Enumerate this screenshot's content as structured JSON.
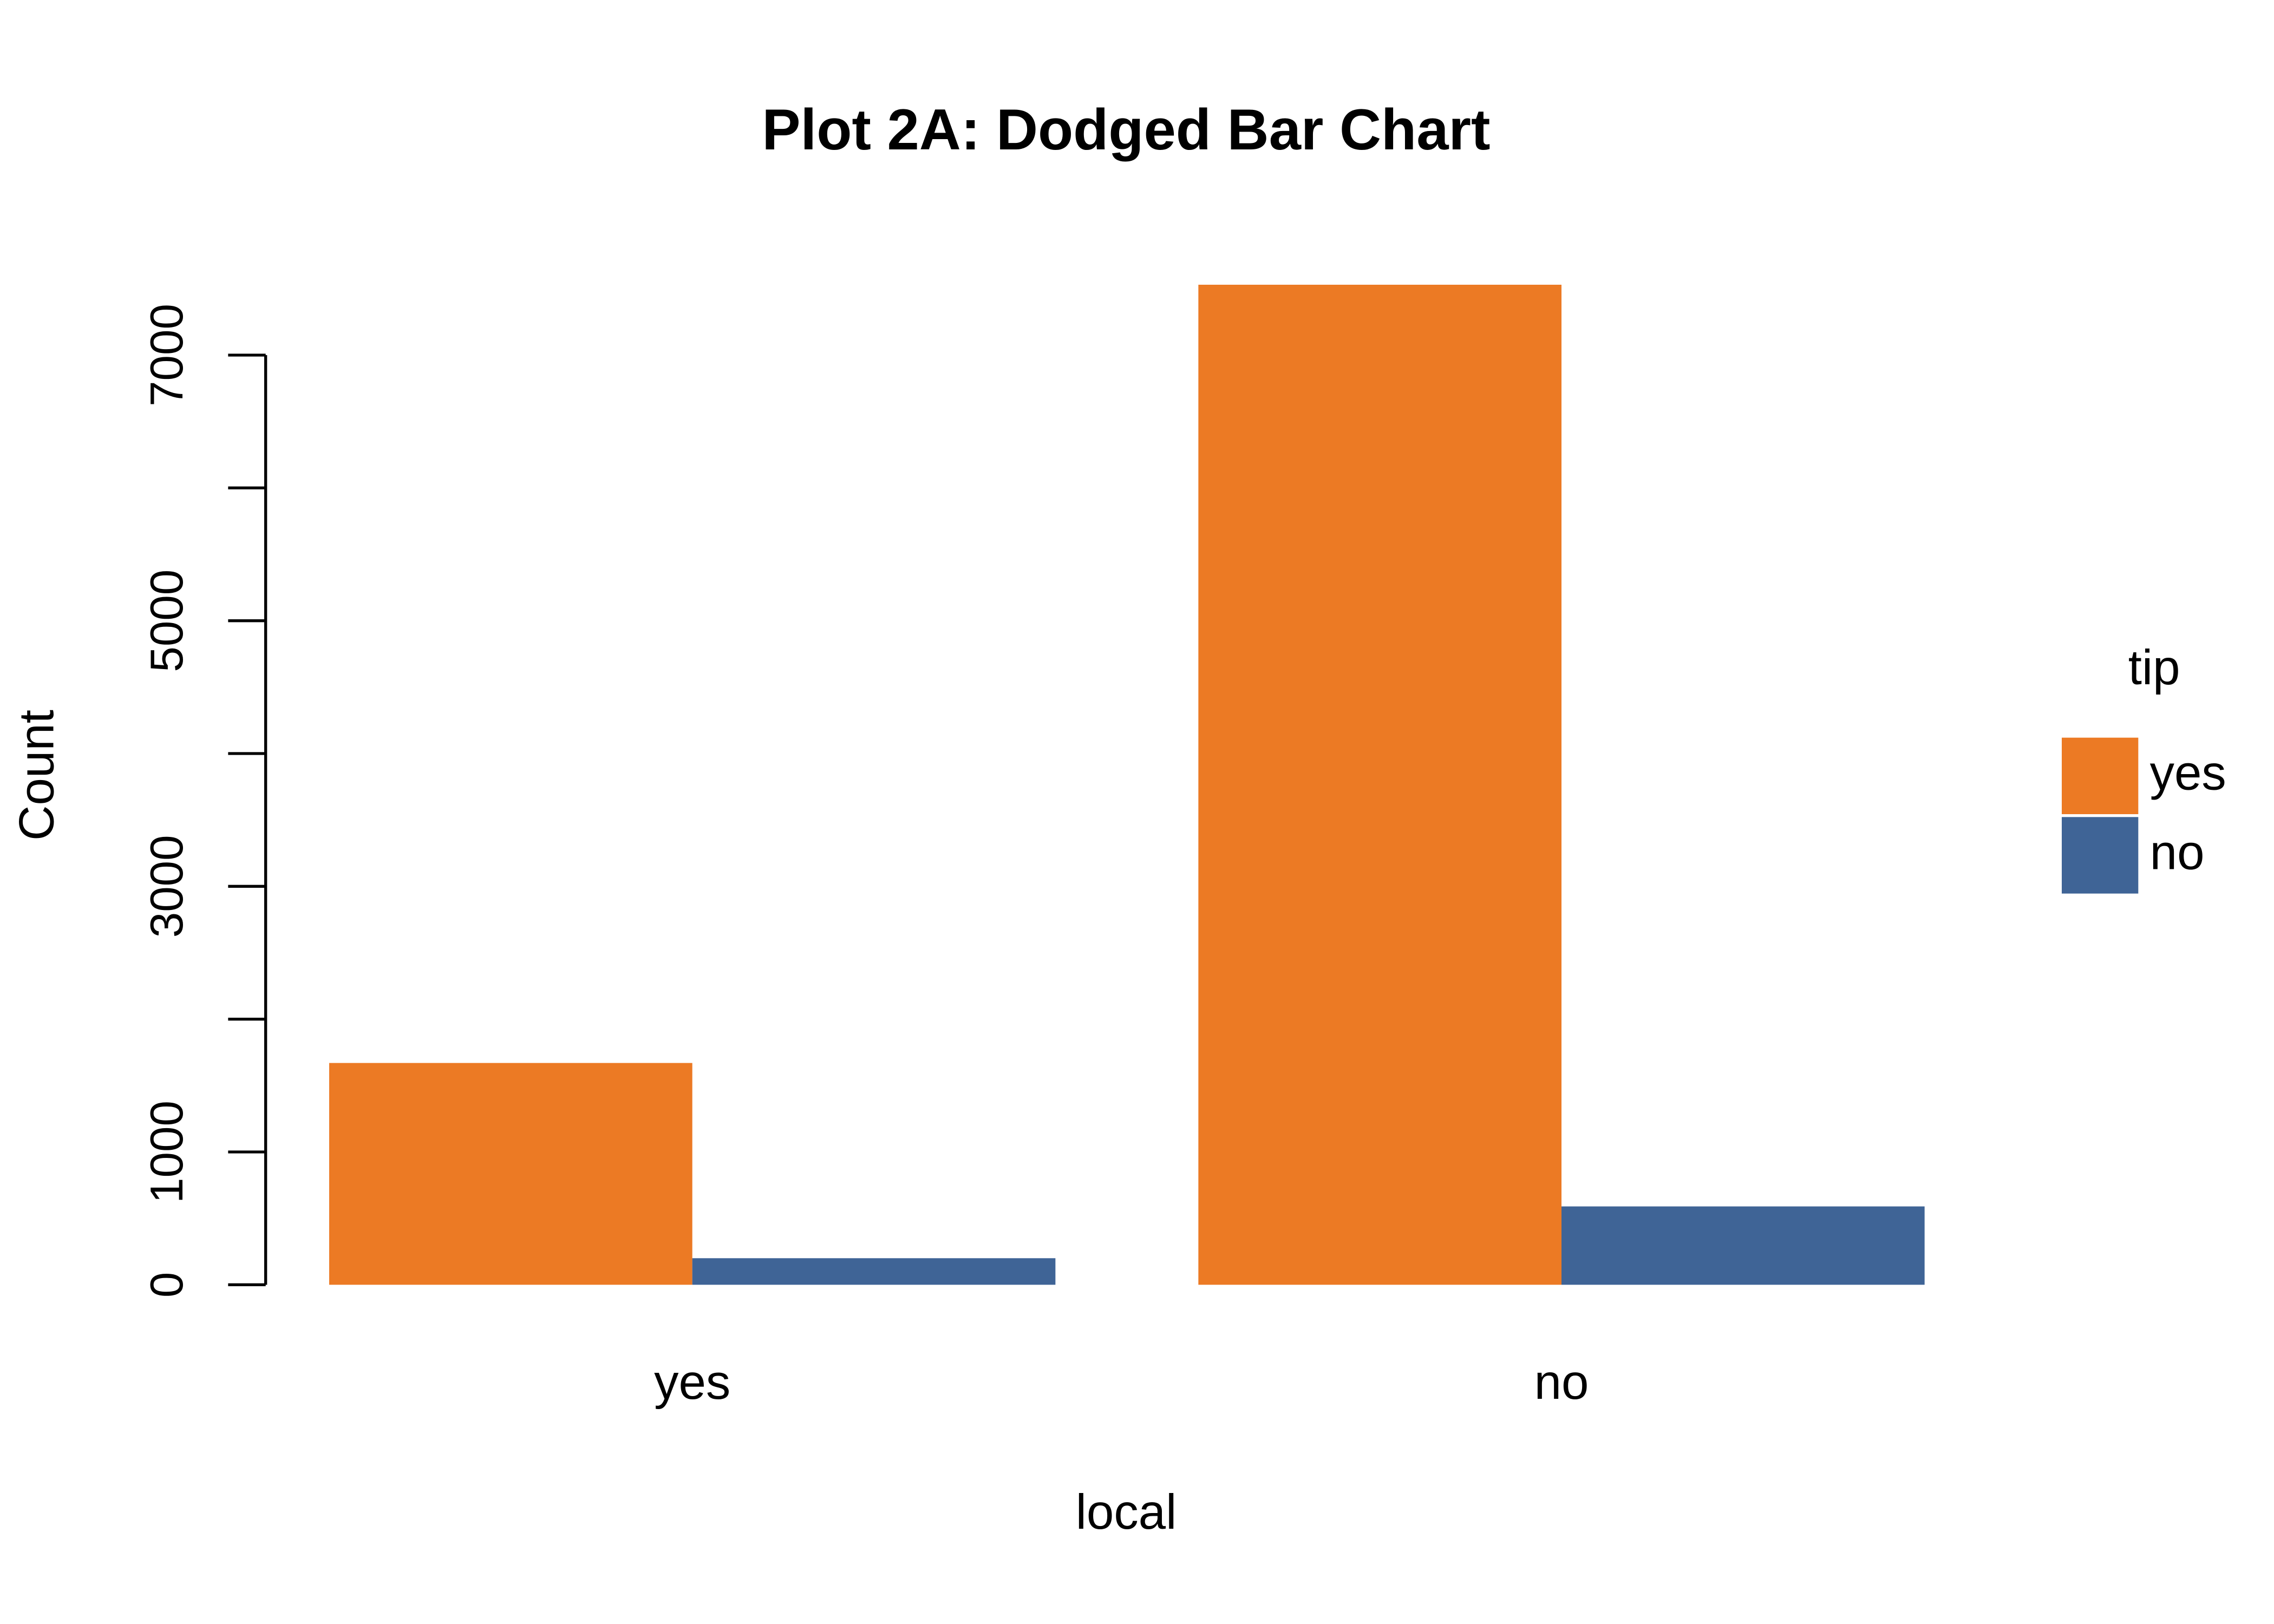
{
  "chart_data": {
    "type": "bar",
    "title": "Plot 2A: Dodged Bar Chart",
    "x_label": "local",
    "y_label": "Count",
    "categories": [
      "yes",
      "no"
    ],
    "legend_title": "tip",
    "series": [
      {
        "name": "yes",
        "color": "#EC7A24",
        "values": [
          1670,
          7530
        ]
      },
      {
        "name": "no",
        "color": "#3F6496",
        "values": [
          200,
          590
        ]
      }
    ],
    "ylim": [
      0,
      7000
    ],
    "yticks": [
      0,
      1000,
      3000,
      5000,
      7000
    ],
    "yminor_ticks": [
      2000,
      4000,
      6000
    ],
    "legend_position": "right"
  }
}
